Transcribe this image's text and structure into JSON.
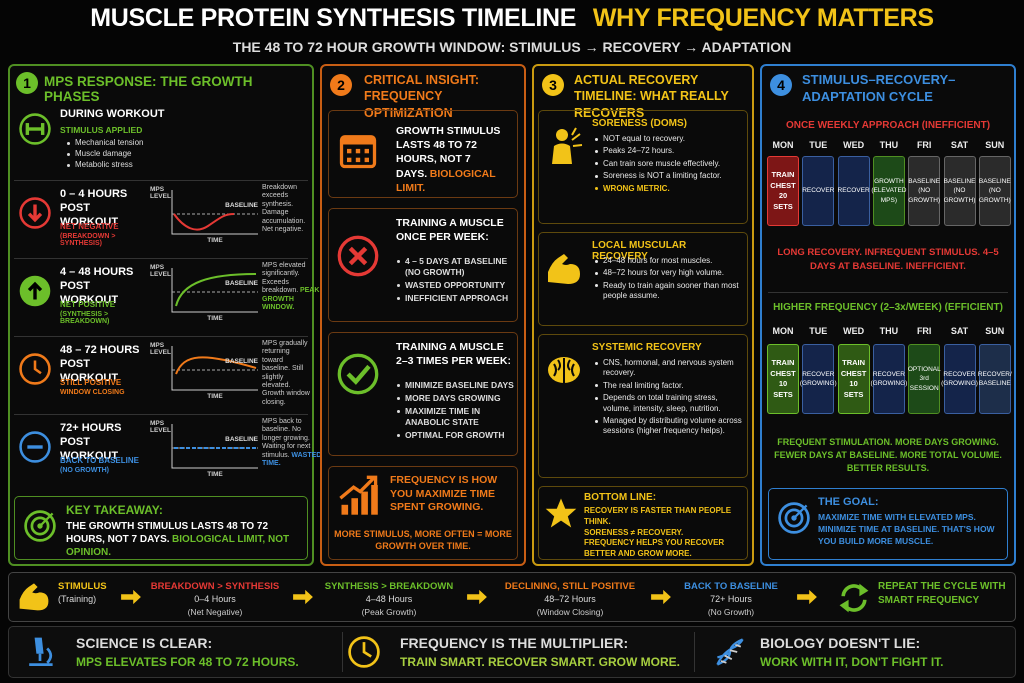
{
  "header": {
    "title": "MUSCLE PROTEIN SYNTHESIS TIMELINE",
    "title_accent": "WHY FREQUENCY MATTERS",
    "subtitle": "THE 48 TO 72 HOUR GROWTH WINDOW: STIMULUS → RECOVERY → ADAPTATION"
  },
  "mini_chart": {
    "y_label": "MPS LEVEL",
    "baseline": "BASELINE",
    "x_label": "TIME"
  },
  "panel1": {
    "number": "1",
    "title": "MPS RESPONSE: THE GROWTH PHASES",
    "workout": {
      "title": "DURING WORKOUT",
      "status": "STIMULUS APPLIED",
      "bullets": [
        "Mechanical tension",
        "Muscle damage",
        "Metabolic stress"
      ]
    },
    "phases": [
      {
        "title": "0 – 4 HOURS POST WORKOUT",
        "status": "NET NEGATIVE",
        "detail": "(BREAKDOWN > SYNTHESIS)",
        "note": "Breakdown exceeds synthesis. Damage accumulation. Net negative."
      },
      {
        "title": "4 – 48 HOURS POST WORKOUT",
        "status": "NET POSITIVE",
        "detail": "(SYNTHESIS > BREAKDOWN)",
        "note": "MPS elevated significantly. Exceeds breakdown.",
        "highlight": "PEAK GROWTH WINDOW."
      },
      {
        "title": "48 – 72 HOURS POST WORKOUT",
        "status": "STILL POSITIVE",
        "detail": "WINDOW CLOSING",
        "note": "MPS gradually returning toward baseline. Still slightly elevated. Growth window closing."
      },
      {
        "title": "72+ HOURS POST WORKOUT",
        "status": "BACK TO BASELINE",
        "detail": "(NO GROWTH)",
        "note": "MPS back to baseline. No longer growing. Waiting for next stimulus.",
        "highlight": "WASTED TIME."
      }
    ],
    "takeaway": {
      "title": "KEY TAKEAWAY:",
      "text": "THE GROWTH STIMULUS LASTS 48 TO 72 HOURS, NOT 7 DAYS.",
      "highlight": "BIOLOGICAL LIMIT, NOT OPINION."
    }
  },
  "panel2": {
    "number": "2",
    "title": "CRITICAL INSIGHT: FREQUENCY OPTIMIZATION",
    "stimulus": {
      "heading": "GROWTH STIMULUS LASTS 48 TO 72 HOURS, NOT 7 DAYS.",
      "highlight": "BIOLOGICAL LIMIT."
    },
    "once": {
      "heading": "TRAINING A MUSCLE ONCE PER WEEK:",
      "bullets": [
        "4 – 5 DAYS AT BASELINE (NO GROWTH)",
        "WASTED OPPORTUNITY",
        "INEFFICIENT APPROACH"
      ]
    },
    "frequent": {
      "heading": "TRAINING A MUSCLE 2–3 TIMES PER WEEK:",
      "bullets": [
        "MINIMIZE BASELINE DAYS",
        "MORE DAYS GROWING",
        "MAXIMIZE TIME IN ANABOLIC STATE",
        "OPTIMAL FOR GROWTH"
      ]
    },
    "conclusion": {
      "heading": "FREQUENCY IS HOW YOU MAXIMIZE TIME SPENT GROWING.",
      "text": "MORE STIMULUS, MORE OFTEN = MORE GROWTH OVER TIME."
    }
  },
  "panel3": {
    "number": "3",
    "title": "ACTUAL RECOVERY TIMELINE: WHAT REALLY RECOVERS",
    "sections": [
      {
        "heading": "SORENESS (DOMS)",
        "bullets": [
          "NOT equal to recovery.",
          "Peaks 24–72 hours.",
          "Can train sore muscle effectively.",
          "Soreness is NOT a limiting factor."
        ],
        "highlight": "WRONG METRIC."
      },
      {
        "heading": "LOCAL MUSCULAR RECOVERY",
        "bullets": [
          "24–48 hours for most muscles.",
          "48–72 hours for very high volume.",
          "Ready to train again sooner than most people assume."
        ]
      },
      {
        "heading": "SYSTEMIC RECOVERY",
        "bullets": [
          "CNS, hormonal, and nervous system recovery.",
          "The real limiting factor.",
          "Depends on total training stress, volume, intensity, sleep, nutrition.",
          "Managed by distributing volume across sessions (higher frequency helps)."
        ]
      }
    ],
    "bottom_line": {
      "title": "BOTTOM LINE:",
      "lines": [
        "RECOVERY IS FASTER THAN PEOPLE THINK.",
        "SORENESS ≠ RECOVERY.",
        "FREQUENCY HELPS YOU RECOVER BETTER AND GROW MORE."
      ]
    }
  },
  "panel4": {
    "number": "4",
    "title": "STIMULUS–RECOVERY–ADAPTATION CYCLE",
    "days": [
      "MON",
      "TUE",
      "WED",
      "THU",
      "FRI",
      "SAT",
      "SUN"
    ],
    "once_weekly": {
      "title": "ONCE WEEKLY APPROACH (INEFFICIENT)",
      "cells": [
        "TRAIN CHEST 20 SETS",
        "RECOVER",
        "RECOVER",
        "GROWTH (ELEVATED MPS)",
        "BASELINE (NO GROWTH)",
        "BASELINE (NO GROWTH)",
        "BASELINE (NO GROWTH)"
      ],
      "summary": "LONG RECOVERY. INFREQUENT STIMULUS. 4–5 DAYS AT BASELINE. INEFFICIENT."
    },
    "higher_frequency": {
      "title": "HIGHER FREQUENCY (2–3x/WEEK) (EFFICIENT)",
      "cells": [
        "TRAIN CHEST 10 SETS",
        "RECOVER (GROWING)",
        "TRAIN CHEST 10 SETS",
        "RECOVER (GROWING)",
        "OPTIONAL 3rd SESSION",
        "RECOVER (GROWING)",
        "RECOVER/ BASELINE"
      ],
      "summary": "FREQUENT STIMULATION. MORE DAYS GROWING. FEWER DAYS AT BASELINE. MORE TOTAL VOLUME. BETTER RESULTS."
    },
    "goal": {
      "title": "THE GOAL:",
      "text": "MAXIMIZE TIME WITH ELEVATED MPS. MINIMIZE TIME AT BASELINE. THAT'S HOW YOU BUILD MORE MUSCLE."
    }
  },
  "flow": {
    "steps": [
      {
        "label": "STIMULUS",
        "sub": "(Training)"
      },
      {
        "label": "BREAKDOWN > SYNTHESIS",
        "sub": "0–4 Hours",
        "note": "(Net Negative)"
      },
      {
        "label": "SYNTHESIS > BREAKDOWN",
        "sub": "4–48 Hours",
        "note": "(Peak Growth)"
      },
      {
        "label": "DECLINING, STILL POSITIVE",
        "sub": "48–72 Hours",
        "note": "(Window Closing)"
      },
      {
        "label": "BACK TO BASELINE",
        "sub": "72+ Hours",
        "note": "(No Growth)"
      },
      {
        "label": "REPEAT THE CYCLE WITH SMART FREQUENCY"
      }
    ]
  },
  "footer": {
    "items": [
      {
        "title": "SCIENCE IS CLEAR:",
        "text": "MPS ELEVATES FOR 48 TO 72 HOURS."
      },
      {
        "title": "FREQUENCY IS THE MULTIPLIER:",
        "text": "TRAIN SMART. RECOVER SMART. GROW MORE."
      },
      {
        "title": "BIOLOGY DOESN'T LIE:",
        "text": "WORK WITH IT, DON'T FIGHT IT."
      }
    ]
  }
}
